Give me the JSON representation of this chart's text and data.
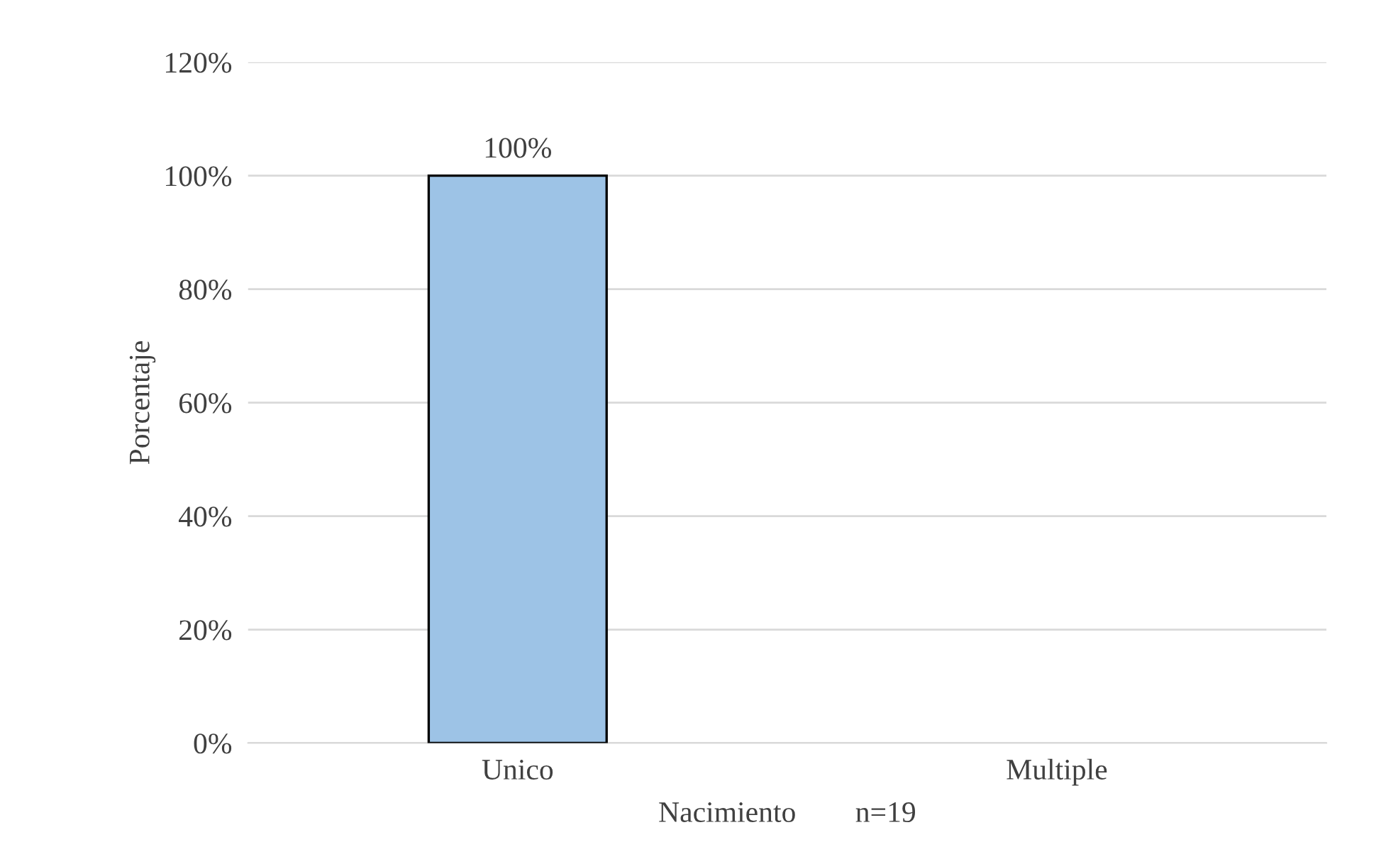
{
  "chart_data": {
    "type": "bar",
    "xlabel": "Nacimiento        n=19",
    "ylabel": "Porcentaje",
    "categories": [
      "Unico",
      "Multiple"
    ],
    "values": [
      100,
      0
    ],
    "value_labels": [
      "100%",
      null
    ],
    "color": "#9dc3e6",
    "ylim": [
      0,
      120
    ],
    "yticks": [
      {
        "value": 0,
        "label": "0%"
      },
      {
        "value": 20,
        "label": "20%"
      },
      {
        "value": 40,
        "label": "40%"
      },
      {
        "value": 60,
        "label": "60%"
      },
      {
        "value": 80,
        "label": "80%"
      },
      {
        "value": 100,
        "label": "100%"
      },
      {
        "value": 120,
        "label": "120%"
      }
    ],
    "grid": "y",
    "legend": false
  }
}
